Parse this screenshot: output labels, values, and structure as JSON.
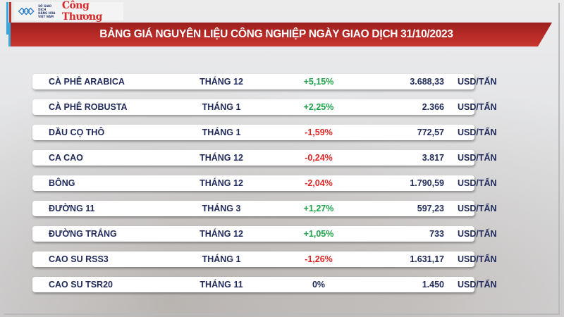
{
  "logo": {
    "org_line1": "SỞ GIAO DỊCH",
    "org_line2": "HÀNG HÓA",
    "org_line3": "VIỆT NAM",
    "brand": "Công Thương"
  },
  "header": {
    "title": "BẢNG GIÁ NGUYÊN LIỆU CÔNG NGHIỆP NGÀY GIAO DỊCH 31/10/2023"
  },
  "colors": {
    "banner_red": "#b62a26",
    "accent_blue": "#35a6dc",
    "text_navy": "#1f2a5a",
    "positive_green": "#1fa34a",
    "negative_red": "#e02424"
  },
  "table": {
    "rows": [
      {
        "name": "CÀ PHÊ ARABICA",
        "month": "THÁNG 12",
        "change": "+5,15%",
        "direction": "pos",
        "price": "3.688,33",
        "unit": "USD/TẤN"
      },
      {
        "name": "CÀ PHÊ ROBUSTA",
        "month": "THÁNG 1",
        "change": "+2,25%",
        "direction": "pos",
        "price": "2.366",
        "unit": "USD/TẤN"
      },
      {
        "name": "DẦU CỌ THÔ",
        "month": "THÁNG 1",
        "change": "-1,59%",
        "direction": "neg",
        "price": "772,57",
        "unit": "USD/TẤN"
      },
      {
        "name": "CA CAO",
        "month": "THÁNG 12",
        "change": "-0,24%",
        "direction": "neg",
        "price": "3.817",
        "unit": "USD/TẤN"
      },
      {
        "name": "BÔNG",
        "month": "THÁNG 12",
        "change": "-2,04%",
        "direction": "neg",
        "price": "1.790,59",
        "unit": "USD/TẤN"
      },
      {
        "name": "ĐƯỜNG 11",
        "month": "THÁNG 3",
        "change": "+1,27%",
        "direction": "pos",
        "price": "597,23",
        "unit": "USD/TẤN"
      },
      {
        "name": "ĐƯỜNG TRẮNG",
        "month": "THÁNG 12",
        "change": "+1,05%",
        "direction": "pos",
        "price": "733",
        "unit": "USD/TẤN"
      },
      {
        "name": "CAO SU RSS3",
        "month": "THÁNG 1",
        "change": "-1,26%",
        "direction": "neg",
        "price": "1.631,17",
        "unit": "USD/TẤN"
      },
      {
        "name": "CAO SU TSR20",
        "month": "THÁNG 11",
        "change": "0%",
        "direction": "flat",
        "price": "1.450",
        "unit": "USD/TẤN"
      }
    ]
  }
}
